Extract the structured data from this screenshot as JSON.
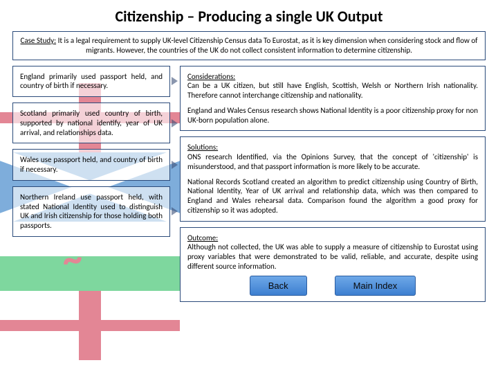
{
  "title": "Citizenship – Producing a single UK Output",
  "case": {
    "label": "Case Study:",
    "text": " It is a legal requirement to supply UK-level Citizenship Census data To Eurostat, as it is key dimension  when considering stock and flow of migrants. However, the countries of the UK do not collect consistent information to determine citizenship."
  },
  "left": {
    "england": "England primarily used passport held, and country of birth if necessary.",
    "scotland": "Scotland primarily used country of birth, supported by  national identify, year of UK arrival, and relationships data.",
    "wales": "Wales use passport held, and country of birth if necessary.",
    "ni": "Northern Ireland use passport held, with stated National Identity  used to distinguish UK and Irish citizenship for those holding both passports."
  },
  "right": {
    "considerations": {
      "label": "Considerations:",
      "p1": "Can be a UK citizen, but still have English, Scottish, Welsh or Northern Irish nationality. Therefore cannot interchange citizenship and nationality.",
      "p2": "England and Wales Census research shows National Identity is a poor citizenship proxy for non UK-born population alone."
    },
    "solutions": {
      "label": "Solutions:",
      "p1": "ONS research Identified, via the Opinions Survey, that the concept of 'citizenship' is misunderstood, and that passport information is more likely to be accurate.",
      "p2": "National Records Scotland created an algorithm to predict citizenship using Country of Birth, National Identity, Year of UK arrival and relationship data, which was then compared to England and Wales rehearsal data. Comparison found the algorithm a good proxy for citizenship so it was adopted."
    },
    "outcome": {
      "label": "Outcome:",
      "p1": "Although not collected, the UK was able to supply a measure of citizenship to Eurostat using proxy variables that were demonstrated to be valid, reliable, and accurate, despite using different source information."
    }
  },
  "buttons": {
    "back": "Back",
    "main": "Main Index"
  },
  "colors": {
    "border": "#2a4a7a",
    "btn_top": "#6ea8e8",
    "btn_bottom": "#3d7fd0"
  }
}
